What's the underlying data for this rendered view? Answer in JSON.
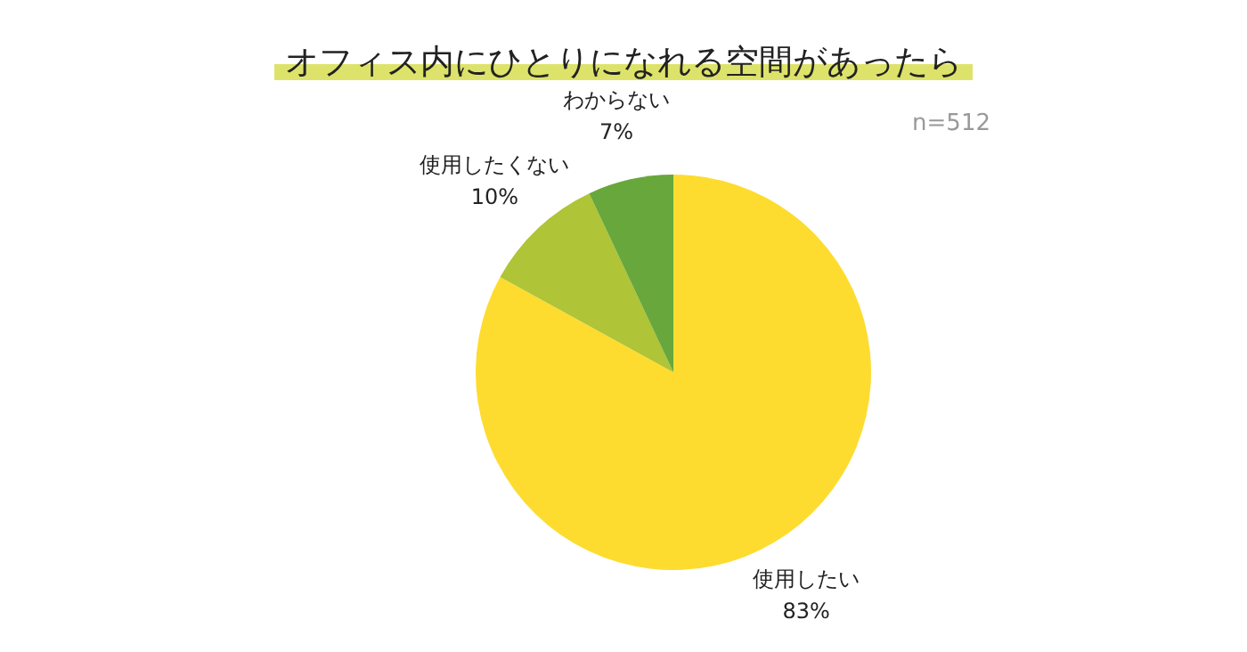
{
  "chart_data": {
    "type": "pie",
    "title": "オフィス内にひとりになれる空間があったら",
    "categories": [
      "使用したい",
      "使用したくない",
      "わからない"
    ],
    "values": [
      83,
      10,
      7
    ],
    "value_labels": [
      "83%",
      "10%",
      "7%"
    ],
    "colors": [
      "#fddc2f",
      "#afc436",
      "#68a73c"
    ],
    "annotations": [
      "n=512"
    ],
    "legend": false
  }
}
